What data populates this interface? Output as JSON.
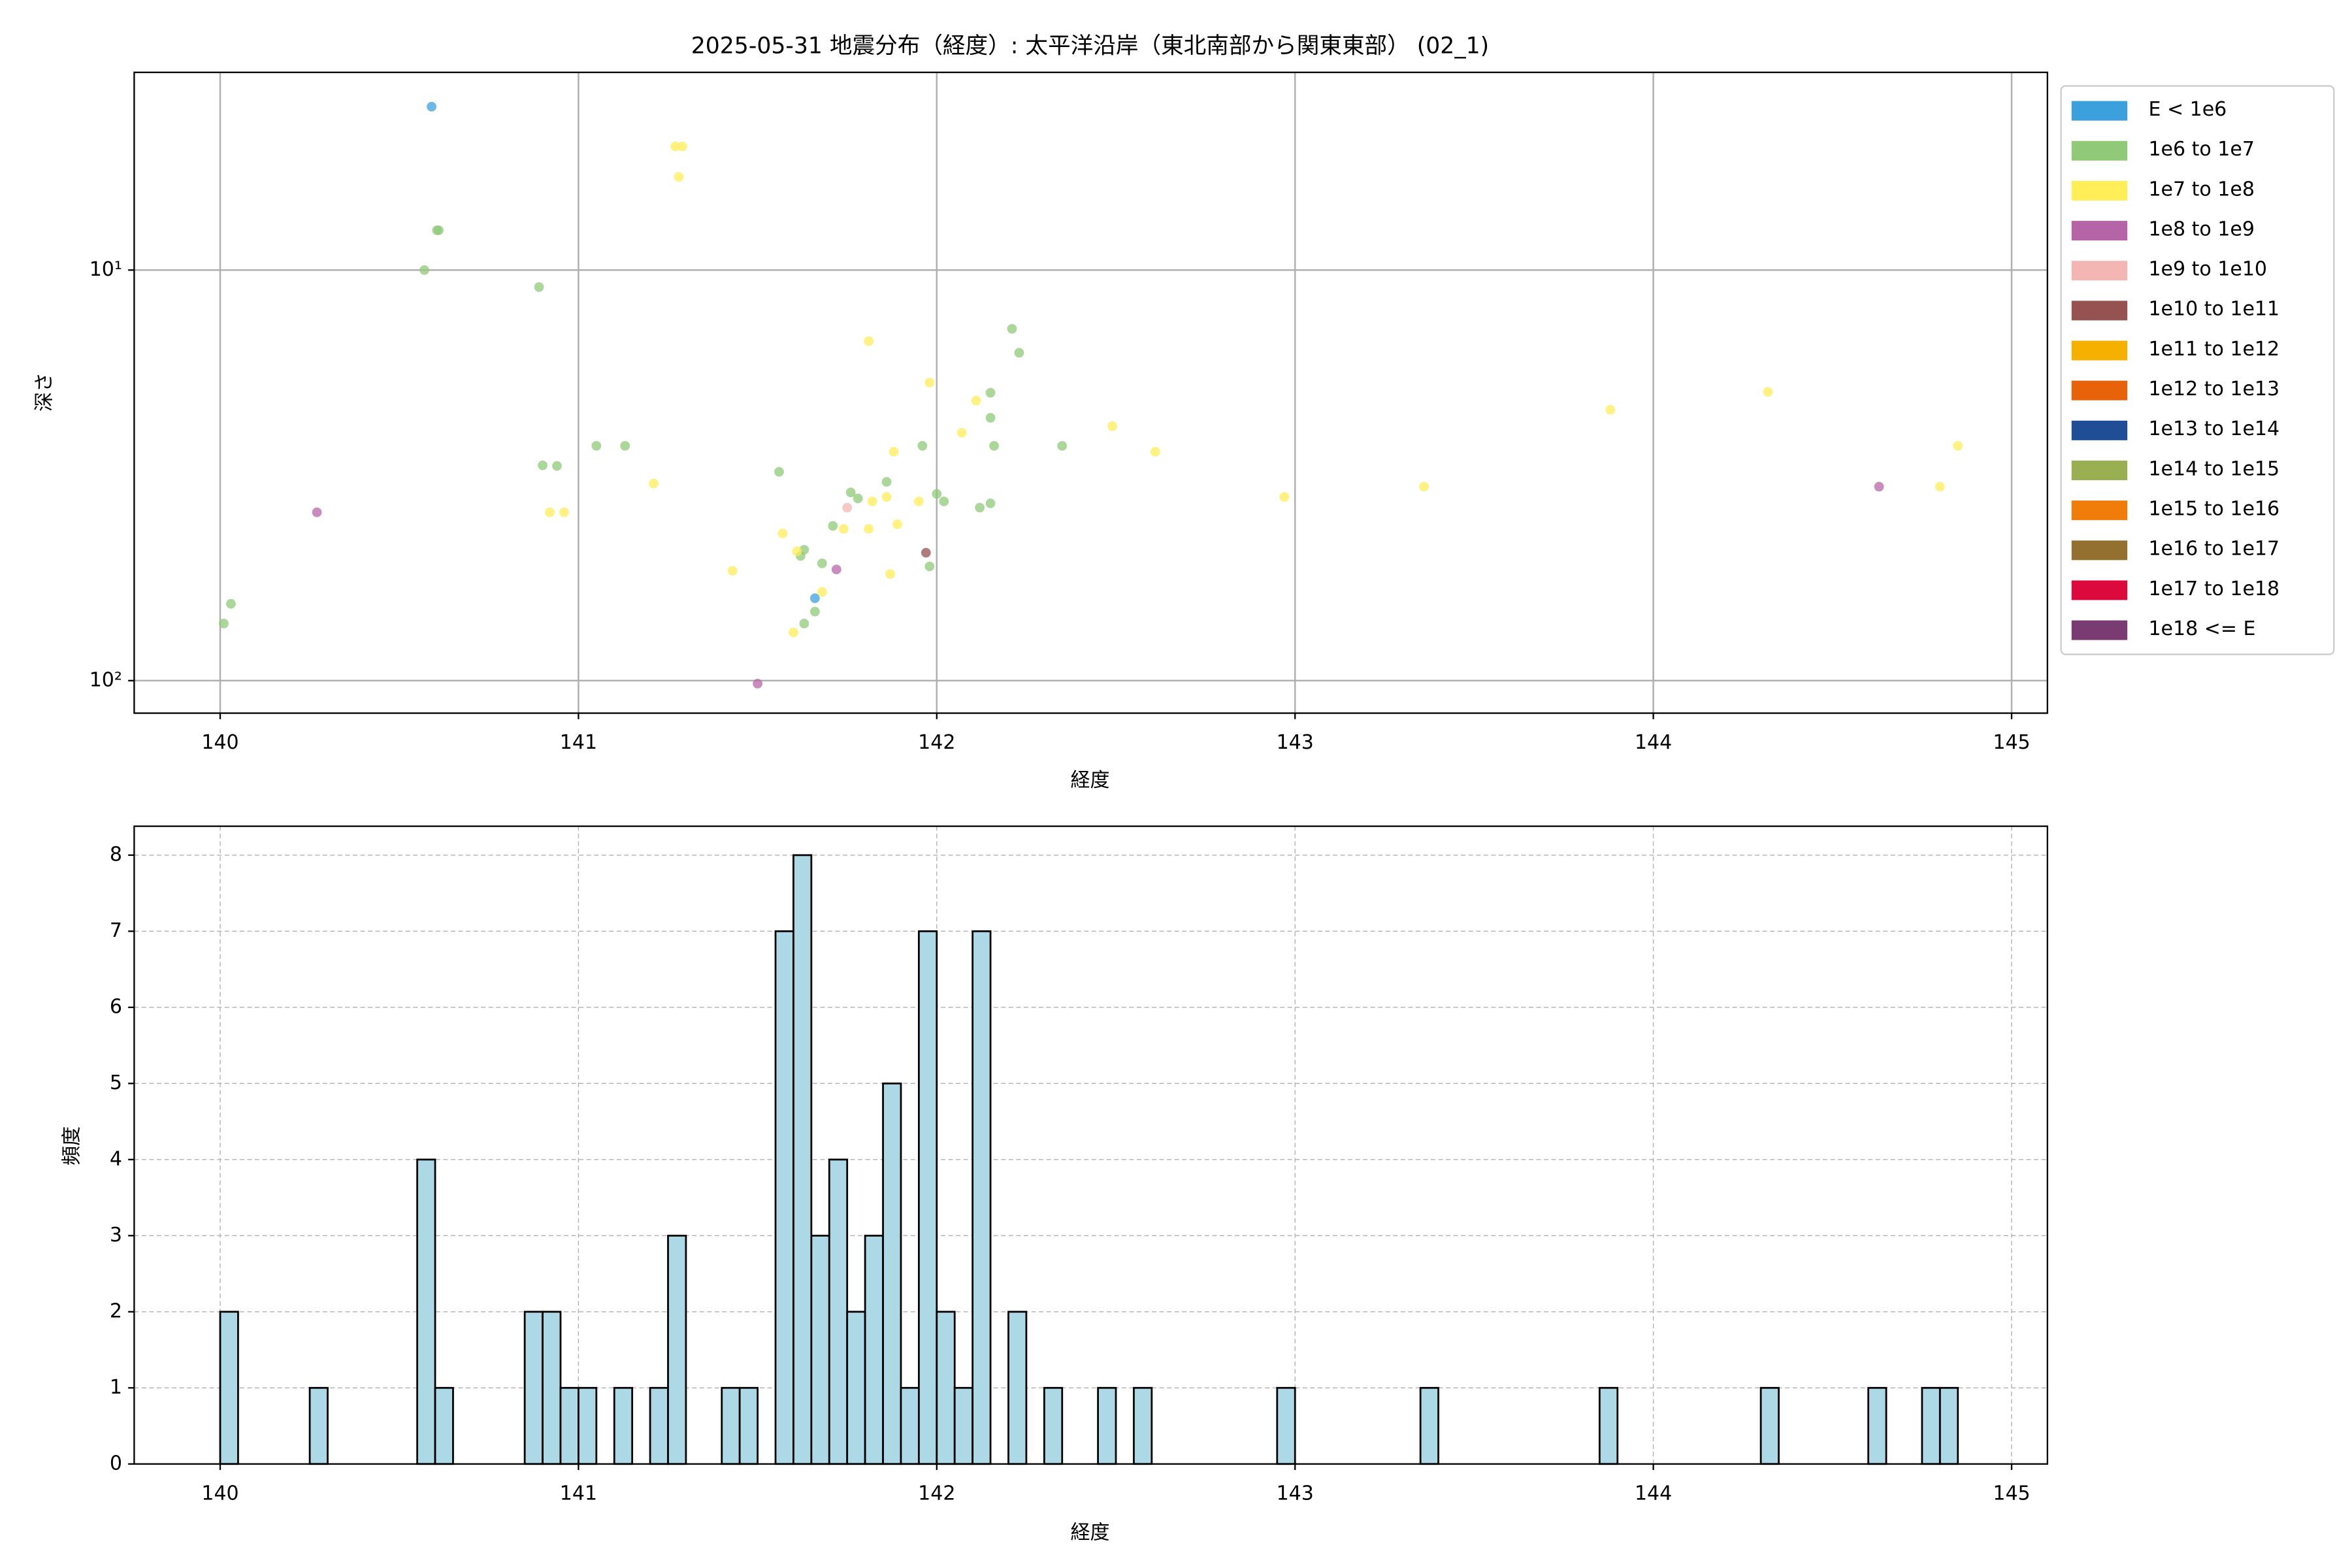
{
  "chart_data": [
    {
      "type": "scatter",
      "title": "2025-05-31 地震分布（経度）: 太平洋沿岸（東北南部から関東東部） (02_1)",
      "x_label": "経度",
      "y_label": "深さ",
      "yscale": "log",
      "y_inverted": true,
      "grid": true,
      "grid_style": "solid",
      "legend": "outside-right",
      "xlim": [
        139.76,
        145.1
      ],
      "xticks": [
        140,
        141,
        142,
        143,
        144,
        145
      ],
      "ylim": [
        3.3,
        120
      ],
      "yticks": [
        {
          "value": 10,
          "label": "10¹"
        },
        {
          "value": 100,
          "label": "10²"
        }
      ],
      "series": [
        {
          "name": "E < 1e6",
          "color": "#3ca0dc",
          "x": [
            140.59,
            141.66
          ],
          "y": [
            4.0,
            63
          ]
        },
        {
          "name": "1e6 to 1e7",
          "color": "#90c978",
          "x": [
            140.605,
            140.61,
            140.57,
            140.89,
            140.01,
            140.03,
            140.9,
            140.94,
            141.05,
            141.13,
            141.56,
            141.62,
            141.63,
            141.68,
            141.71,
            141.76,
            141.78,
            141.86,
            141.63,
            141.66,
            141.96,
            141.98,
            142.0,
            142.02,
            142.21,
            142.23,
            142.15,
            142.15,
            142.16,
            142.12,
            142.15,
            142.35
          ],
          "y": [
            8.0,
            8.0,
            10,
            11,
            72.6,
            65,
            29.9,
            30,
            26.8,
            26.8,
            31,
            49.7,
            48,
            51.8,
            42,
            34.8,
            36,
            32.8,
            72.6,
            67.9,
            26.8,
            52.7,
            35.1,
            36.6,
            13.9,
            15.9,
            19.9,
            22.9,
            26.8,
            37.9,
            37,
            26.8
          ]
        },
        {
          "name": "1e7 to 1e8",
          "color": "#ffee58",
          "x": [
            141.27,
            141.29,
            141.28,
            141.81,
            141.98,
            142.11,
            142.07,
            141.88,
            141.21,
            140.92,
            140.96,
            141.57,
            141.61,
            141.43,
            141.74,
            141.81,
            141.82,
            141.86,
            141.89,
            141.95,
            141.87,
            141.68,
            141.6,
            142.49,
            142.61,
            142.97,
            143.36,
            143.88,
            144.32,
            144.8,
            144.85
          ],
          "y": [
            5.0,
            5.0,
            5.93,
            14.9,
            18.8,
            20.8,
            24.9,
            27.7,
            33.1,
            38.9,
            38.9,
            43.8,
            48.4,
            54,
            42.7,
            42.7,
            36.6,
            35.7,
            41.6,
            36.6,
            55,
            60.8,
            76.3,
            24,
            27.7,
            35.7,
            33.7,
            21.9,
            19.8,
            33.7,
            26.8
          ]
        },
        {
          "name": "1e8 to 1e9",
          "color": "#b565a7",
          "x": [
            140.27,
            141.72,
            141.5,
            144.63
          ],
          "y": [
            38.9,
            53.6,
            101.7,
            33.7
          ]
        },
        {
          "name": "1e9 to 1e10",
          "color": "#f4b6b2",
          "x": [
            141.75
          ],
          "y": [
            37.9
          ]
        },
        {
          "name": "1e10 to 1e11",
          "color": "#955251",
          "x": [
            141.97
          ],
          "y": [
            48.8
          ]
        },
        {
          "name": "1e11 to 1e12",
          "color": "#f6b000",
          "x": [],
          "y": []
        },
        {
          "name": "1e12 to 1e13",
          "color": "#e8620a",
          "x": [],
          "y": []
        },
        {
          "name": "1e13 to 1e14",
          "color": "#1f4e96",
          "x": [],
          "y": []
        },
        {
          "name": "1e14 to 1e15",
          "color": "#9aaf52",
          "x": [],
          "y": []
        },
        {
          "name": "1e15 to 1e16",
          "color": "#f07c0a",
          "x": [],
          "y": []
        },
        {
          "name": "1e16 to 1e17",
          "color": "#937030",
          "x": [],
          "y": []
        },
        {
          "name": "1e17 to 1e18",
          "color": "#dc0a3c",
          "x": [],
          "y": []
        },
        {
          "name": "1e18 <= E",
          "color": "#7a3b72",
          "x": [],
          "y": []
        }
      ]
    },
    {
      "type": "histogram",
      "x_label": "経度",
      "y_label": "頻度",
      "color": "#add8e6",
      "grid": true,
      "grid_style": "dashed",
      "xlim": [
        139.76,
        145.1
      ],
      "xticks": [
        140,
        141,
        142,
        143,
        144,
        145
      ],
      "ylim": [
        0,
        8.38
      ],
      "yticks": [
        0,
        1,
        2,
        3,
        4,
        5,
        6,
        7,
        8
      ],
      "bins": [
        140,
        140.05,
        140.1,
        140.15,
        140.2,
        140.25,
        140.3,
        140.35,
        140.4,
        140.45,
        140.5,
        140.55,
        140.6,
        140.65,
        140.7,
        140.75,
        140.8,
        140.85,
        140.9,
        140.95,
        141,
        141.05,
        141.1,
        141.15,
        141.2,
        141.25,
        141.3,
        141.35,
        141.4,
        141.45,
        141.5,
        141.55,
        141.6,
        141.65,
        141.7,
        141.75,
        141.8,
        141.85,
        141.9,
        141.95,
        142,
        142.05,
        142.1,
        142.15,
        142.2,
        142.25,
        142.3,
        142.35,
        142.4,
        142.45,
        142.5,
        142.55,
        142.6,
        142.65,
        142.7,
        142.75,
        142.8,
        142.85,
        142.9,
        142.95,
        143,
        143.05,
        143.1,
        143.15,
        143.2,
        143.25,
        143.3,
        143.35,
        143.4,
        143.45,
        143.5,
        143.55,
        143.6,
        143.65,
        143.7,
        143.75,
        143.8,
        143.85,
        143.9,
        143.95,
        144,
        144.05,
        144.1,
        144.15,
        144.2,
        144.25,
        144.3,
        144.35,
        144.4,
        144.45,
        144.5,
        144.55,
        144.6,
        144.65,
        144.7,
        144.75,
        144.8,
        144.85,
        144.9,
        144.95,
        145
      ],
      "values": [
        2,
        0,
        0,
        0,
        0,
        1,
        0,
        0,
        0,
        0,
        0,
        4,
        1,
        0,
        0,
        0,
        0,
        2,
        2,
        1,
        1,
        0,
        1,
        0,
        1,
        3,
        0,
        0,
        1,
        1,
        0,
        7,
        8,
        3,
        4,
        2,
        3,
        5,
        1,
        7,
        2,
        1,
        7,
        0,
        2,
        0,
        1,
        0,
        0,
        1,
        0,
        1,
        0,
        0,
        0,
        0,
        0,
        0,
        0,
        1,
        0,
        0,
        0,
        0,
        0,
        0,
        0,
        1,
        0,
        0,
        0,
        0,
        0,
        0,
        0,
        0,
        0,
        1,
        0,
        0,
        0,
        0,
        0,
        0,
        0,
        0,
        1,
        0,
        0,
        0,
        0,
        0,
        1,
        0,
        0,
        1,
        1,
        0,
        0,
        0
      ]
    }
  ]
}
